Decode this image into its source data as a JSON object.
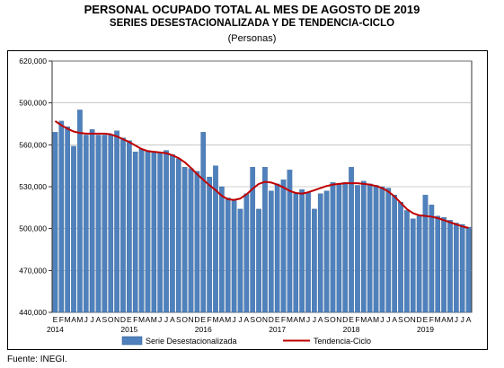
{
  "header": {
    "title": "PERSONAL OCUPADO TOTAL AL MES DE AGOSTO DE 2019",
    "subtitle": "SERIES DESESTACIONALIZADA Y DE TENDENCIA-CICLO",
    "unit": "(Personas)"
  },
  "footer": {
    "source": "Fuente: INEGI."
  },
  "chart_data": {
    "type": "bar",
    "ylim": [
      440000,
      620000
    ],
    "yticks": [
      440000,
      470000,
      500000,
      530000,
      560000,
      590000,
      620000
    ],
    "ytick_labels": [
      "440,000",
      "470,000",
      "500,000",
      "530,000",
      "560,000",
      "590,000",
      "620,000"
    ],
    "grid": true,
    "legend_position": "bottom",
    "month_labels": [
      "E",
      "F",
      "M",
      "A",
      "M",
      "J",
      "J",
      "A",
      "S",
      "O",
      "N",
      "D"
    ],
    "x_labels": [
      "E",
      "F",
      "M",
      "A",
      "M",
      "J",
      "J",
      "A",
      "S",
      "O",
      "N",
      "D",
      "E",
      "F",
      "M",
      "A",
      "M",
      "J",
      "J",
      "A",
      "S",
      "O",
      "N",
      "D",
      "E",
      "F",
      "M",
      "A",
      "M",
      "J",
      "J",
      "A",
      "S",
      "O",
      "N",
      "D",
      "E",
      "F",
      "M",
      "A",
      "M",
      "J",
      "J",
      "A",
      "S",
      "O",
      "N",
      "D",
      "E",
      "F",
      "M",
      "A",
      "M",
      "J",
      "J",
      "A",
      "S",
      "O",
      "N",
      "D",
      "E",
      "F",
      "M",
      "A",
      "M",
      "J",
      "J",
      "A"
    ],
    "years": [
      {
        "label": "2014",
        "index": 0
      },
      {
        "label": "2015",
        "index": 12
      },
      {
        "label": "2016",
        "index": 24
      },
      {
        "label": "2017",
        "index": 36
      },
      {
        "label": "2018",
        "index": 48
      },
      {
        "label": "2019",
        "index": 60
      }
    ],
    "series": [
      {
        "name": "Serie Desestacionalizada",
        "color": "#4f81bd",
        "values": [
          569000,
          577000,
          573000,
          559000,
          585000,
          567000,
          571000,
          567000,
          567000,
          567000,
          570000,
          565000,
          563000,
          555000,
          557000,
          556000,
          555000,
          554000,
          556000,
          553000,
          550000,
          544000,
          543000,
          541000,
          569000,
          537000,
          545000,
          530000,
          522000,
          520000,
          514000,
          525000,
          544000,
          514000,
          544000,
          527000,
          532000,
          535000,
          542000,
          525000,
          528000,
          526000,
          514000,
          525000,
          527000,
          533000,
          532000,
          533000,
          544000,
          531000,
          534000,
          532000,
          531000,
          530000,
          529000,
          524000,
          519000,
          513000,
          507000,
          509000,
          524000,
          517000,
          509000,
          508000,
          506000,
          504000,
          503000,
          501000
        ]
      },
      {
        "name": "Tendencia-Ciclo",
        "color": "#c00000",
        "type": "line",
        "values": [
          577000,
          574000,
          571500,
          569500,
          568500,
          568000,
          568000,
          568000,
          568000,
          567500,
          566000,
          564000,
          562000,
          559500,
          557000,
          555500,
          555000,
          554500,
          554000,
          552500,
          550500,
          547500,
          543500,
          539000,
          535000,
          531000,
          527500,
          523500,
          521000,
          520500,
          521500,
          524500,
          528500,
          532000,
          533500,
          533000,
          531500,
          529500,
          527000,
          525500,
          525000,
          526000,
          527500,
          529000,
          530500,
          531500,
          532000,
          532500,
          532500,
          532500,
          532000,
          531500,
          530500,
          529000,
          526500,
          523000,
          518500,
          514000,
          511000,
          509500,
          509000,
          508500,
          507500,
          506000,
          504500,
          503000,
          501500,
          500500
        ]
      }
    ]
  }
}
